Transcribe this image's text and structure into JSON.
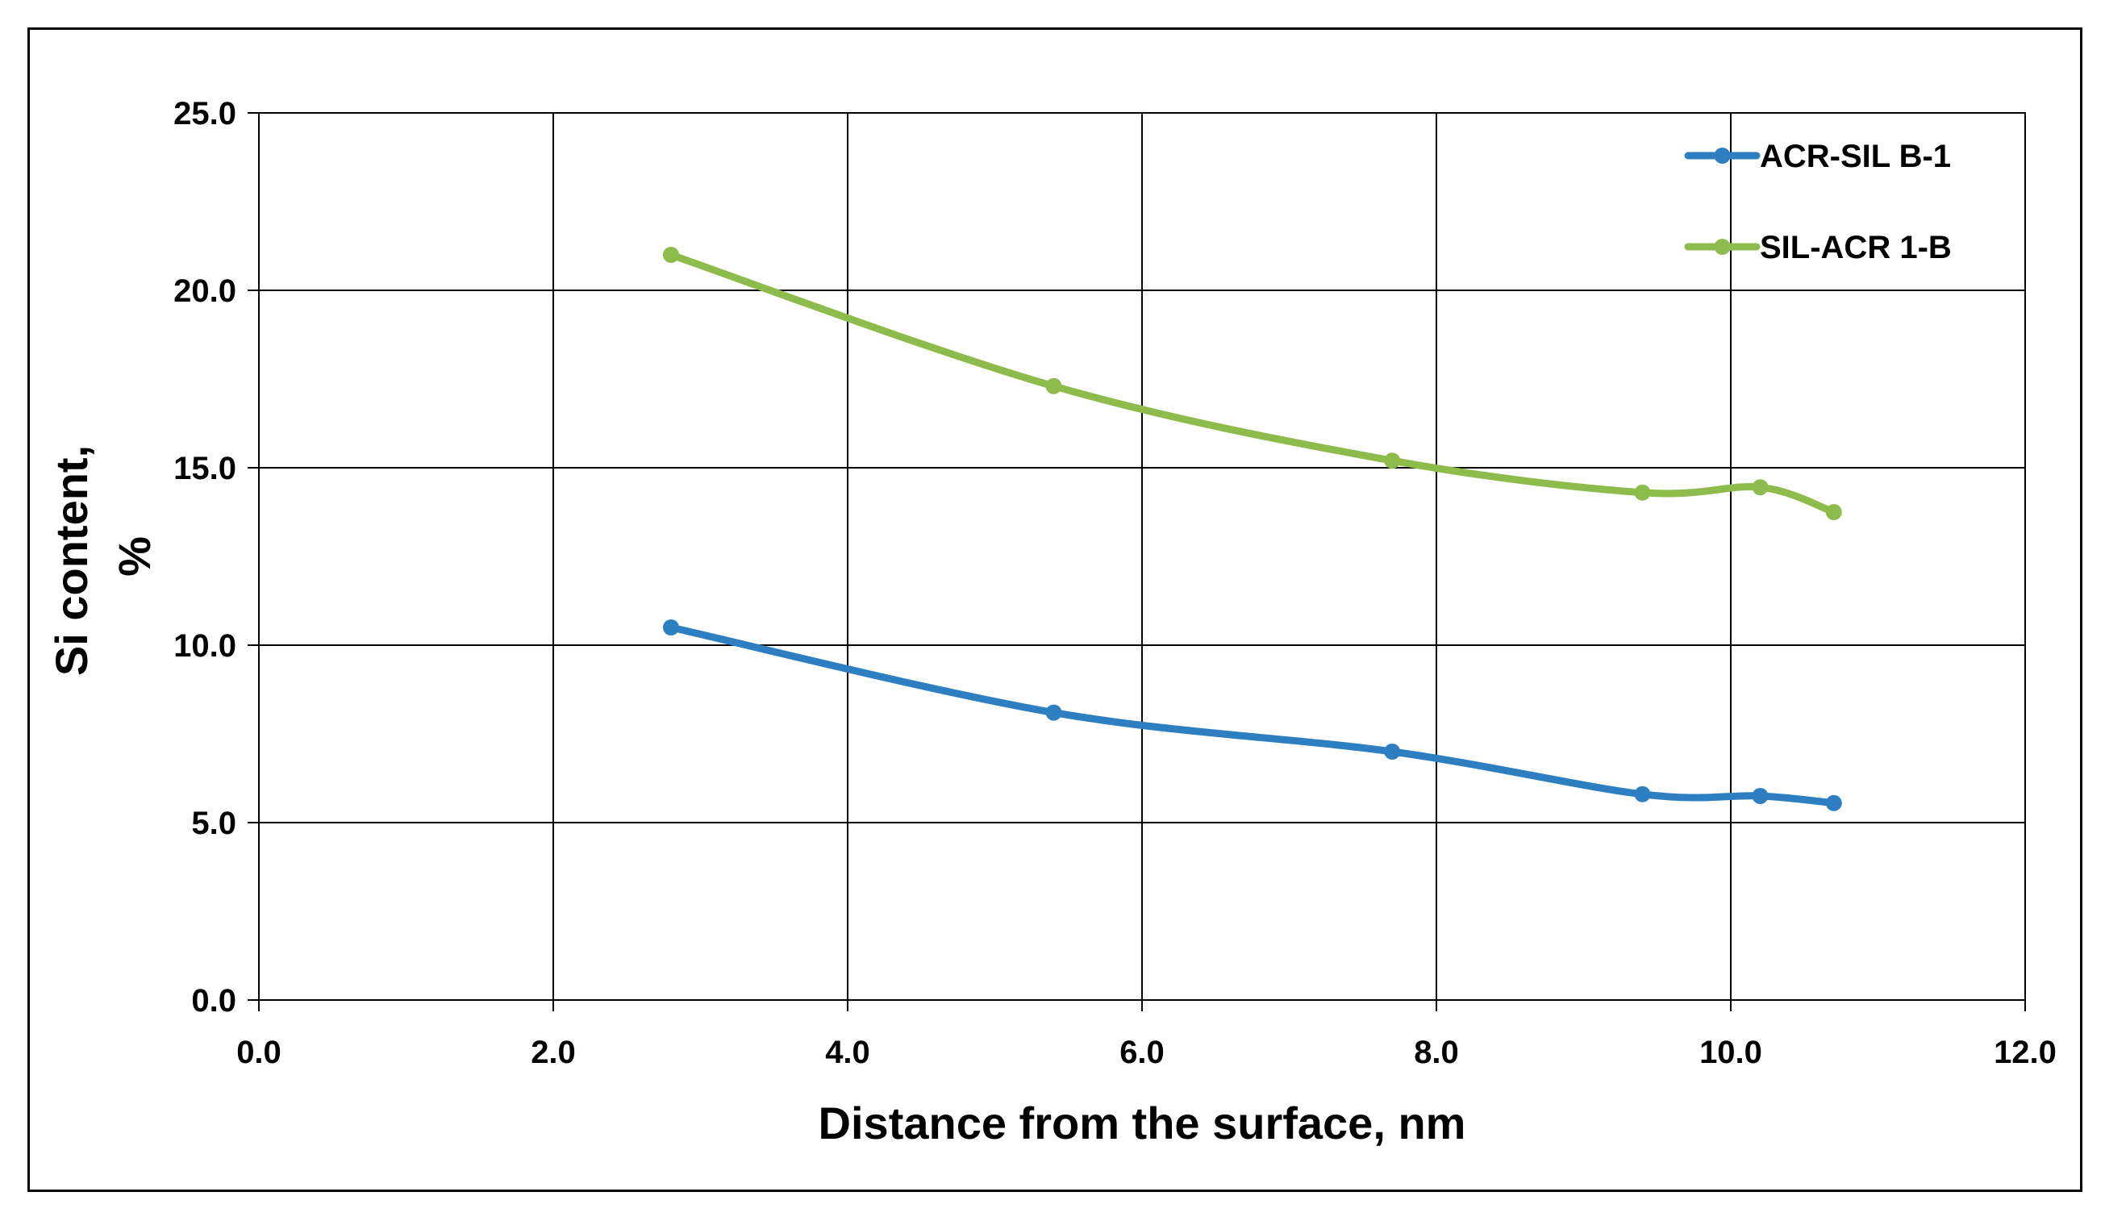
{
  "chart_data": {
    "type": "line",
    "title": "",
    "xlabel": "Distance from the surface, nm",
    "ylabel_line1": "Si content,",
    "ylabel_line2": "%",
    "xlim": [
      0,
      12
    ],
    "ylim": [
      0,
      25
    ],
    "x_ticks": [
      0,
      2,
      4,
      6,
      8,
      10,
      12
    ],
    "y_ticks": [
      0,
      5,
      10,
      15,
      20,
      25
    ],
    "x_tick_labels": [
      "0.0",
      "2.0",
      "4.0",
      "6.0",
      "8.0",
      "10.0",
      "12.0"
    ],
    "y_tick_labels": [
      "0.0",
      "5.0",
      "10.0",
      "15.0",
      "20.0",
      "25.0"
    ],
    "grid": true,
    "legend_position": "top-right",
    "smooth": true,
    "series": [
      {
        "name": "ACR-SIL B-1",
        "color": "#2e7fc1",
        "x": [
          2.8,
          5.4,
          7.7,
          9.4,
          10.2,
          10.7
        ],
        "y": [
          10.5,
          8.1,
          7.0,
          5.8,
          5.75,
          5.55
        ]
      },
      {
        "name": "SIL-ACR 1-B",
        "color": "#8dbb4c",
        "x": [
          2.8,
          5.4,
          7.7,
          9.4,
          10.2,
          10.7
        ],
        "y": [
          21.0,
          17.3,
          15.2,
          14.3,
          14.45,
          13.75
        ]
      }
    ]
  }
}
